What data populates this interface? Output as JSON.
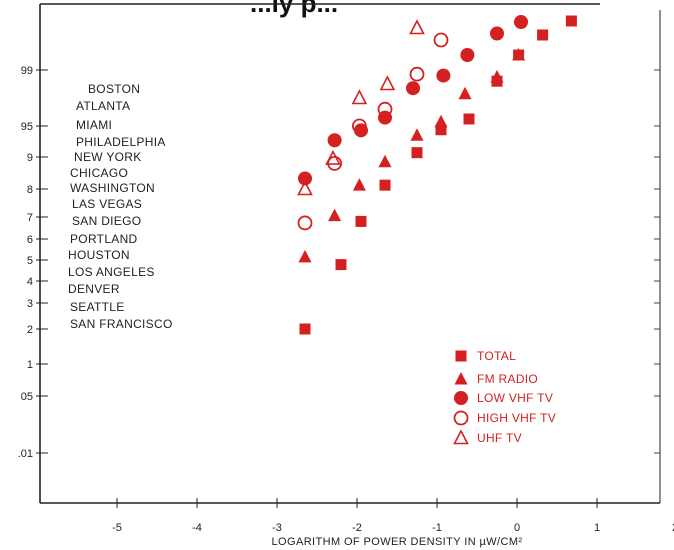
{
  "chart_data": {
    "type": "scatter",
    "title": "...ly p...",
    "xlabel": "LOGARITHM OF POWER DENSITY IN µW/CM²",
    "xlim": [
      -5.85,
      2.0
    ],
    "x_ticks": [
      {
        "value": -5,
        "label": "-5"
      },
      {
        "value": -4,
        "label": "-4"
      },
      {
        "value": -3,
        "label": "-3"
      },
      {
        "value": -2,
        "label": "-2"
      },
      {
        "value": -1,
        "label": "-1"
      },
      {
        "value": 0,
        "label": "0"
      },
      {
        "value": 1,
        "label": "1"
      },
      {
        "value": 2,
        "label": "2"
      }
    ],
    "y_ticks": [
      {
        "label": "99"
      },
      {
        "label": "95"
      },
      {
        "label": "9"
      },
      {
        "label": "8"
      },
      {
        "label": "7"
      },
      {
        "label": "6"
      },
      {
        "label": "5"
      },
      {
        "label": "4"
      },
      {
        "label": "3"
      },
      {
        "label": "2"
      },
      {
        "label": "1"
      },
      {
        "label": "05"
      },
      {
        "label": ".01"
      }
    ],
    "cities": [
      "BOSTON",
      "ATLANTA",
      "MIAMI",
      "PHILADELPHIA",
      "NEW YORK",
      "CHICAGO",
      "WASHINGTON",
      "LAS VEGAS",
      "SAN DIEGO",
      "PORTLAND",
      "HOUSTON",
      "LOS ANGELES",
      "DENVER",
      "SEATTLE",
      "SAN FRANCISCO"
    ],
    "series": [
      {
        "name": "TOTAL",
        "marker": "square-filled",
        "points": [
          [
            -2.65,
            2
          ],
          [
            -2.2,
            4.78
          ],
          [
            -1.95,
            6.8
          ],
          [
            -1.65,
            8.12
          ],
          [
            -1.25,
            9.07
          ],
          [
            -0.95,
            9.44
          ],
          [
            -0.6,
            9.55
          ],
          [
            -0.25,
            9.82
          ],
          [
            0.02,
            9.93
          ],
          [
            0.32,
            9.97
          ],
          [
            0.68,
            9.998
          ]
        ]
      },
      {
        "name": "FM RADIO",
        "marker": "triangle-filled",
        "points": [
          [
            -2.65,
            5.15
          ],
          [
            -2.28,
            7.05
          ],
          [
            -1.97,
            8.12
          ],
          [
            -1.65,
            8.85
          ],
          [
            -1.25,
            9.35
          ],
          [
            -0.95,
            9.53
          ],
          [
            -0.65,
            9.73
          ],
          [
            -0.25,
            9.85
          ],
          [
            0.02,
            9.93
          ]
        ]
      },
      {
        "name": "LOW VHF TV",
        "marker": "circle-filled",
        "points": [
          [
            -2.65,
            8.33
          ],
          [
            -2.28,
            9.27
          ],
          [
            -1.95,
            9.43
          ],
          [
            -1.65,
            9.56
          ],
          [
            -1.3,
            9.77
          ],
          [
            -0.92,
            9.86
          ],
          [
            -0.62,
            9.93
          ],
          [
            -0.25,
            9.973
          ],
          [
            0.05,
            9.996
          ]
        ]
      },
      {
        "name": "HIGH VHF TV",
        "marker": "circle-open",
        "points": [
          [
            -2.65,
            6.73
          ],
          [
            -2.28,
            8.8
          ],
          [
            -1.97,
            9.5
          ],
          [
            -1.65,
            9.62
          ],
          [
            -1.25,
            9.87
          ],
          [
            -0.95,
            9.96
          ]
        ]
      },
      {
        "name": "UHF TV",
        "marker": "triangle-open",
        "points": [
          [
            -2.65,
            8.0
          ],
          [
            -2.3,
            8.95
          ],
          [
            -1.97,
            9.7
          ],
          [
            -1.62,
            9.8
          ],
          [
            -1.25,
            9.984
          ]
        ]
      }
    ],
    "legend_position": "bottom-right",
    "grid": false,
    "marker_color": "#d42020"
  }
}
